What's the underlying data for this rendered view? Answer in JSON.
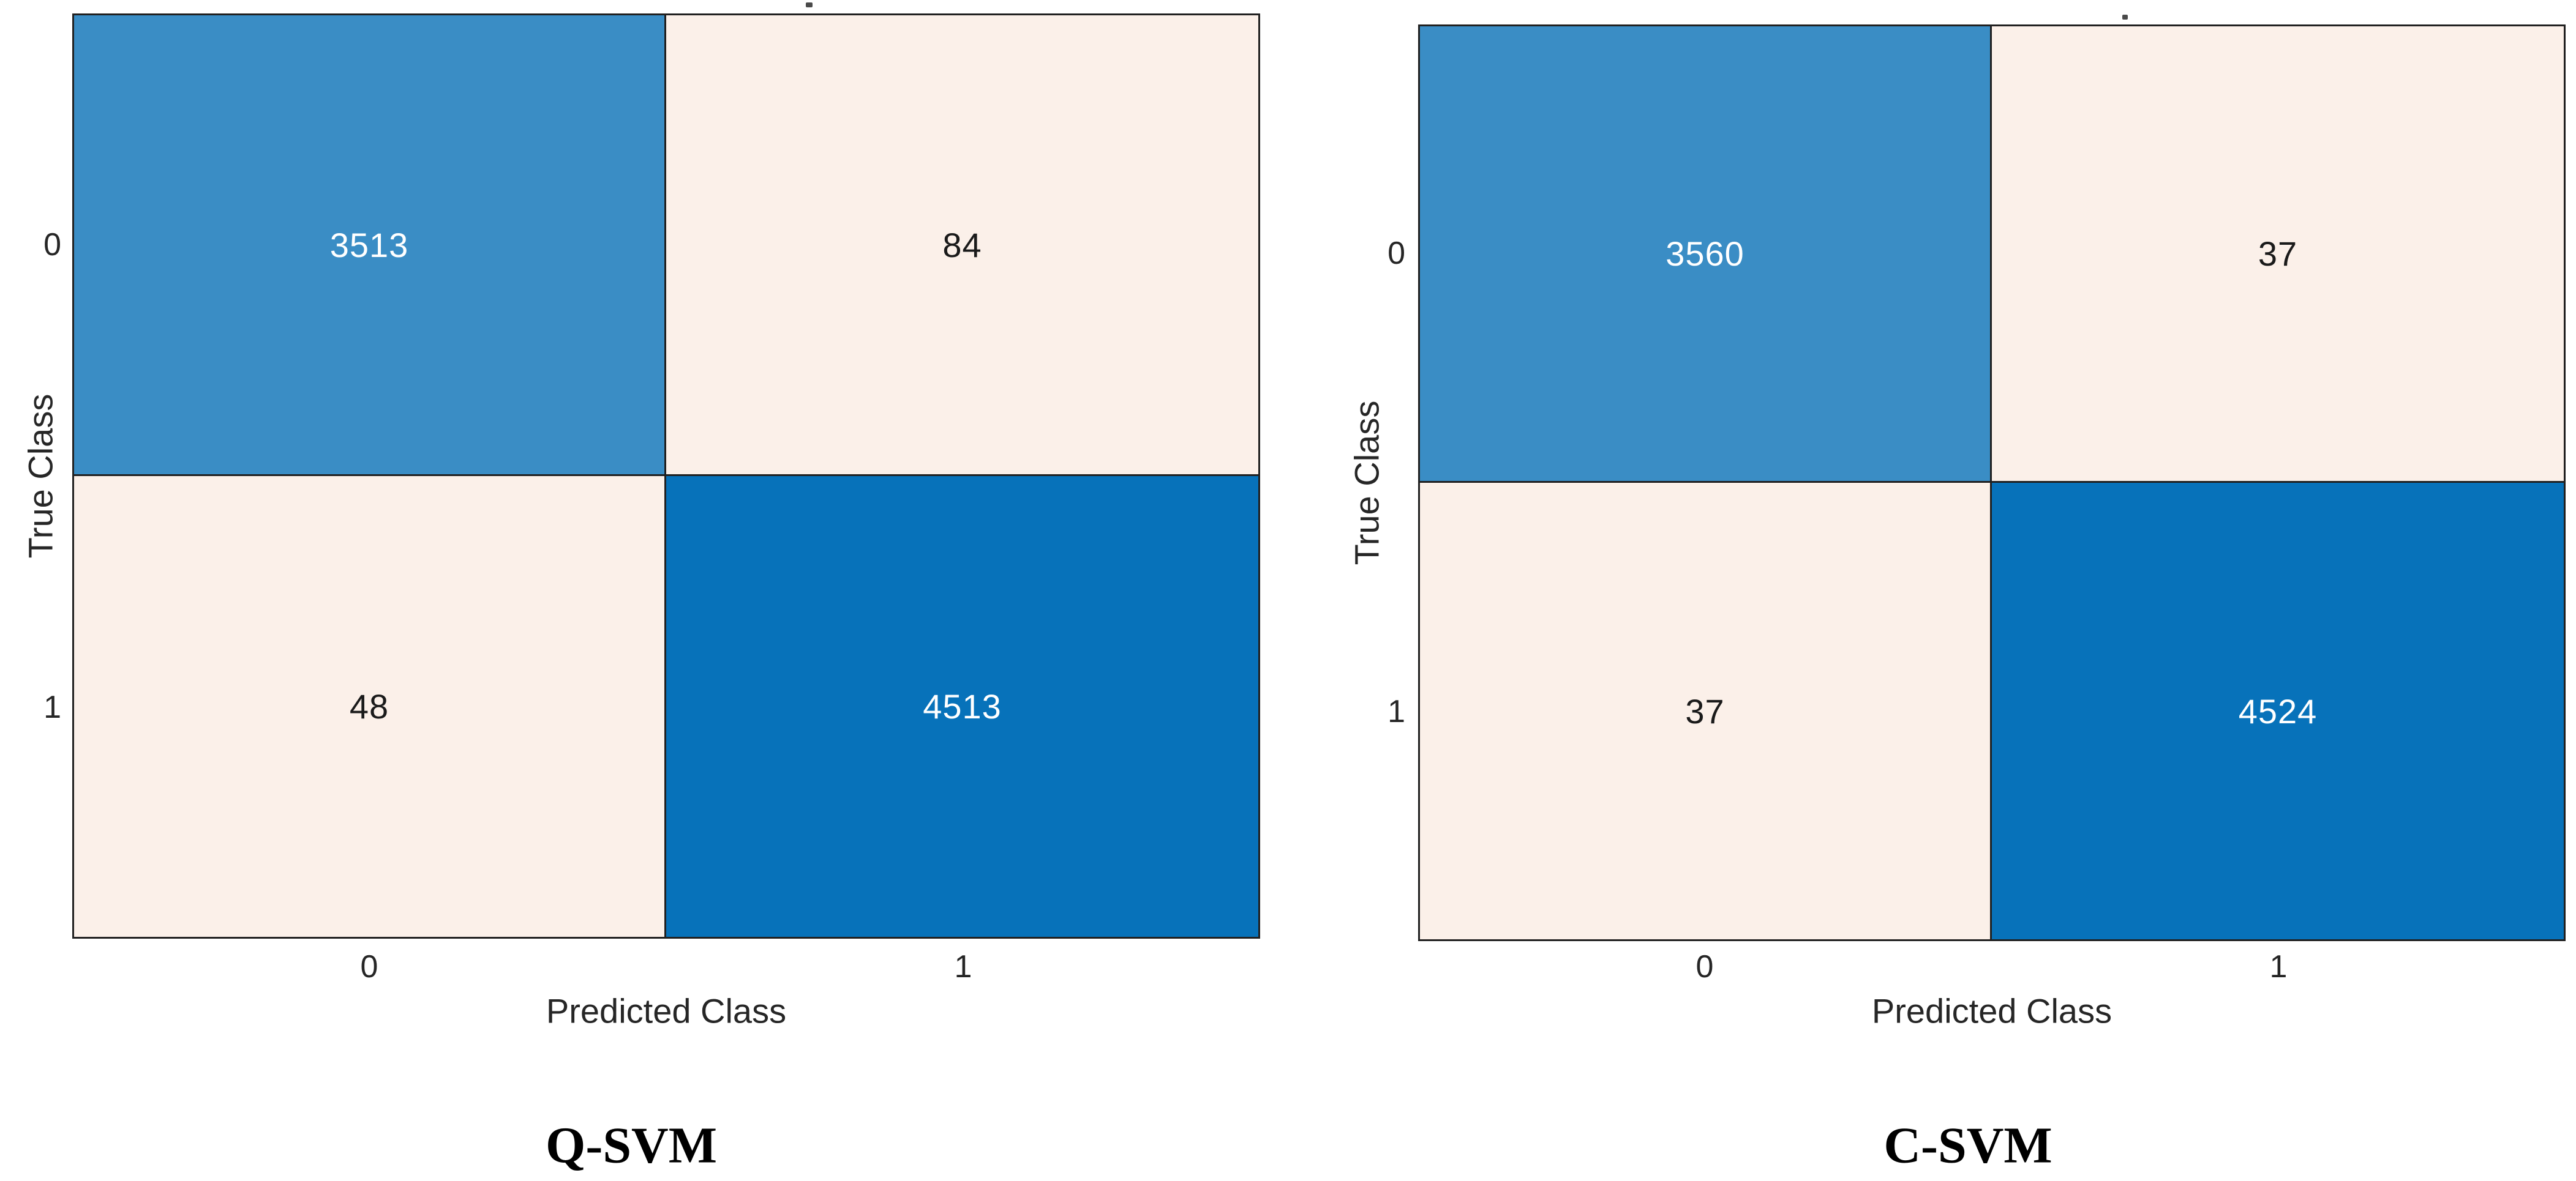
{
  "figure": {
    "background": "#ffffff",
    "colors": {
      "diagonal_dark_blue": "#0772BA",
      "diagonal_light_blue": "#3A8DC5",
      "off_diagonal_cream": "#FBF0E9",
      "grid_line": "#202020",
      "axis_text": "#262626",
      "cell_text_on_blue": "#ffffff",
      "cell_text_on_cream": "#1a1a1a",
      "title_text": "#000000"
    },
    "panels": [
      {
        "title": "Q-SVM",
        "xlabel": "Predicted Class",
        "ylabel": "True Class",
        "xticks": [
          "0",
          "1"
        ],
        "yticks": [
          "0",
          "1"
        ],
        "cells": [
          [
            "3513",
            "84"
          ],
          [
            "48",
            "4513"
          ]
        ]
      },
      {
        "title": "C-SVM",
        "xlabel": "Predicted Class",
        "ylabel": "True Class",
        "xticks": [
          "0",
          "1"
        ],
        "yticks": [
          "0",
          "1"
        ],
        "cells": [
          [
            "3560",
            "37"
          ],
          [
            "37",
            "4524"
          ]
        ]
      }
    ]
  },
  "chart_data": [
    {
      "type": "heatmap",
      "title": "Q-SVM",
      "xlabel": "Predicted Class",
      "ylabel": "True Class",
      "x_categories": [
        "0",
        "1"
      ],
      "y_categories": [
        "0",
        "1"
      ],
      "values": [
        [
          3513,
          84
        ],
        [
          48,
          4513
        ]
      ],
      "cell_colors": [
        [
          "#3A8DC5",
          "#FBF0E9"
        ],
        [
          "#FBF0E9",
          "#0772BA"
        ]
      ],
      "grid": false,
      "legend": "none"
    },
    {
      "type": "heatmap",
      "title": "C-SVM",
      "xlabel": "Predicted Class",
      "ylabel": "True Class",
      "x_categories": [
        "0",
        "1"
      ],
      "y_categories": [
        "0",
        "1"
      ],
      "values": [
        [
          3560,
          37
        ],
        [
          37,
          4524
        ]
      ],
      "cell_colors": [
        [
          "#3A8DC5",
          "#FBF0E9"
        ],
        [
          "#FBF0E9",
          "#0772BA"
        ]
      ],
      "grid": false,
      "legend": "none"
    }
  ]
}
